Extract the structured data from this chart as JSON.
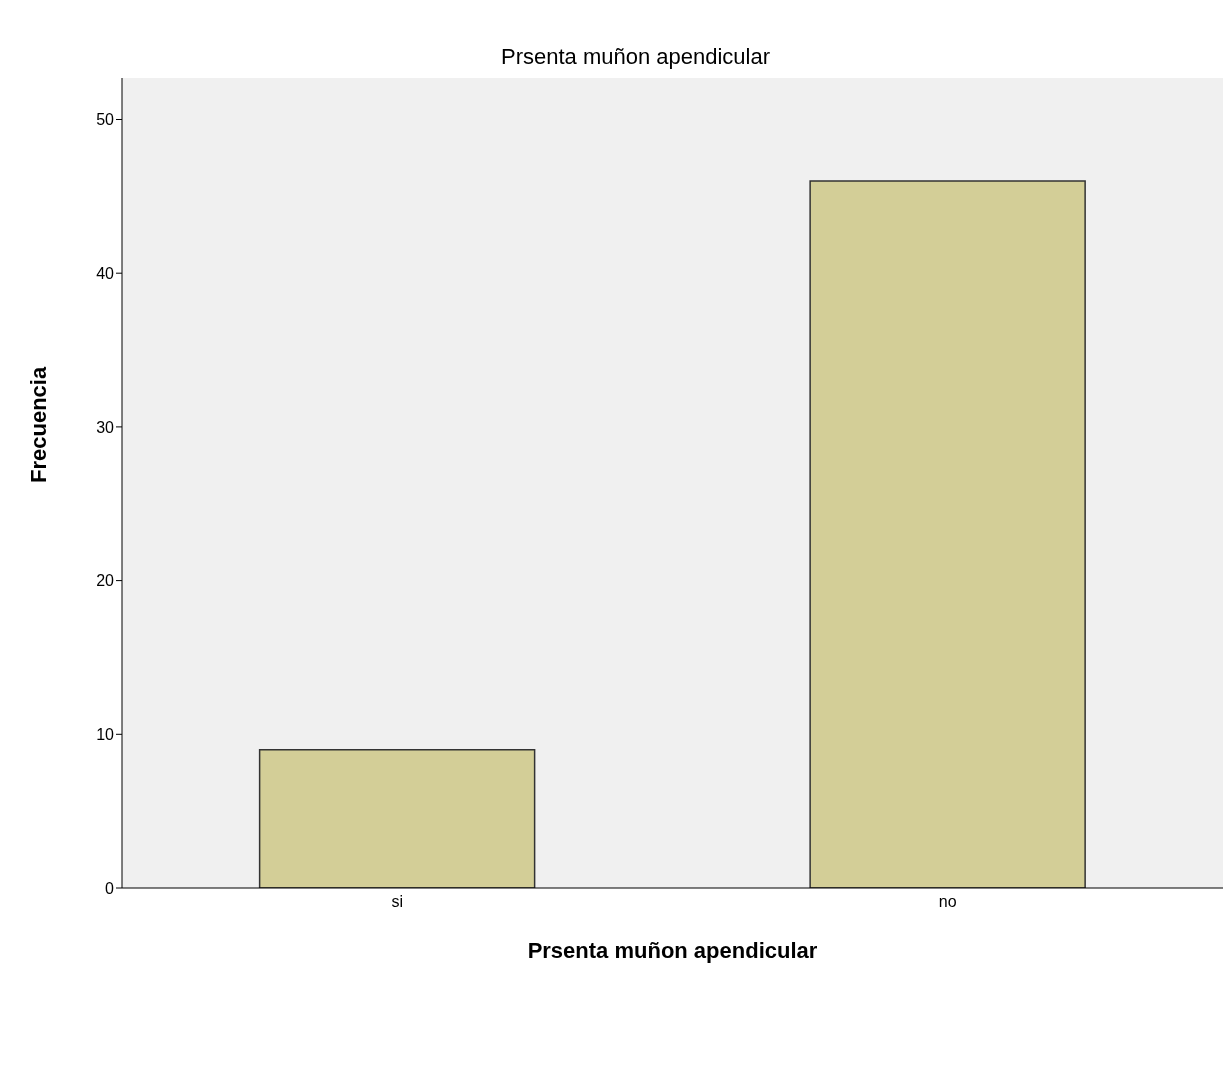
{
  "chart_data": {
    "type": "bar",
    "title": "Prsenta muñon apendicular",
    "xlabel": "Prsenta muñon apendicular",
    "ylabel": "Frecuencia",
    "categories": [
      "si",
      "no"
    ],
    "values": [
      9,
      46
    ],
    "color": "#d3ce97",
    "ylim": [
      0,
      52.7
    ],
    "yticks": [
      0,
      10,
      20,
      30,
      40,
      50
    ],
    "grid": false,
    "legend": false
  }
}
